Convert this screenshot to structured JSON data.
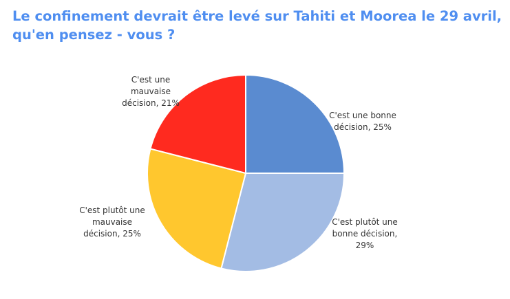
{
  "chart_data": {
    "type": "pie",
    "title": "Le confinement devrait être levé sur Tahiti et Moorea le 29 avril, qu'en pensez - vous ?",
    "start_angle": "top, clockwise",
    "slices": [
      {
        "label_lines": [
          "C'est une bonne",
          "décision, 25%"
        ],
        "label": "C'est une bonne décision",
        "value": 25,
        "color": "#5A8BD0"
      },
      {
        "label_lines": [
          "C'est plutôt une",
          "bonne décision,",
          "29%"
        ],
        "label": "C'est plutôt une bonne décision",
        "value": 29,
        "color": "#A3BCE4"
      },
      {
        "label_lines": [
          "C'est plutôt une",
          "mauvaise",
          "décision, 25%"
        ],
        "label": "C'est plutôt une mauvaise décision",
        "value": 25,
        "color": "#FFC72E"
      },
      {
        "label_lines": [
          "C'est une",
          "mauvaise",
          "décision, 21%"
        ],
        "label": "C'est une mauvaise décision",
        "value": 21,
        "color": "#FF2A1F"
      }
    ],
    "legend": "none"
  }
}
